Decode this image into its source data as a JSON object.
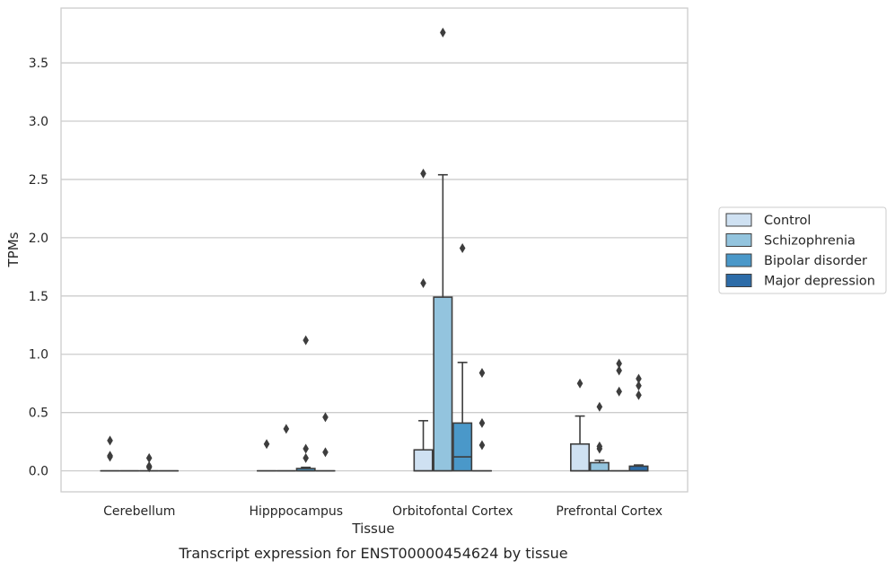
{
  "chart_data": {
    "type": "box",
    "title": "",
    "caption": "Transcript expression for ENST00000454624 by tissue",
    "xlabel": "Tissue",
    "ylabel": "TPMs",
    "ylim": [
      -0.18,
      3.97
    ],
    "yticks": [
      0.0,
      0.5,
      1.0,
      1.5,
      2.0,
      2.5,
      3.0,
      3.5
    ],
    "ytick_labels": [
      "0.0",
      "0.5",
      "1.0",
      "1.5",
      "2.0",
      "2.5",
      "3.0",
      "3.5"
    ],
    "grid": "horizontal",
    "legend_position": "right",
    "categories": [
      "Cerebellum",
      "Hipppocampus",
      "Orbitofontal Cortex",
      "Prefrontal Cortex"
    ],
    "series": [
      {
        "name": "Control",
        "color": "#cfe1f2",
        "boxes": [
          {
            "q1": 0,
            "median": 0,
            "q3": 0,
            "whislo": 0,
            "whishi": 0,
            "fliers": [
              0.26,
              0.13,
              0.12
            ]
          },
          {
            "q1": 0,
            "median": 0,
            "q3": 0,
            "whislo": 0,
            "whishi": 0,
            "fliers": [
              0.23
            ]
          },
          {
            "q1": 0,
            "median": 0,
            "q3": 0.18,
            "whislo": 0,
            "whishi": 0.43,
            "fliers": [
              1.61,
              2.55
            ]
          },
          {
            "q1": 0,
            "median": 0,
            "q3": 0.23,
            "whislo": 0,
            "whishi": 0.47,
            "fliers": [
              0.75
            ]
          }
        ]
      },
      {
        "name": "Schizophrenia",
        "color": "#93c4de",
        "boxes": [
          {
            "q1": 0,
            "median": 0,
            "q3": 0,
            "whislo": 0,
            "whishi": 0,
            "fliers": []
          },
          {
            "q1": 0,
            "median": 0,
            "q3": 0,
            "whislo": 0,
            "whishi": 0,
            "fliers": [
              0.36
            ]
          },
          {
            "q1": 0,
            "median": 0,
            "q3": 1.49,
            "whislo": 0,
            "whishi": 2.54,
            "fliers": [
              3.76
            ]
          },
          {
            "q1": 0,
            "median": 0,
            "q3": 0.07,
            "whislo": 0,
            "whishi": 0.09,
            "fliers": [
              0.55,
              0.21,
              0.19
            ]
          }
        ]
      },
      {
        "name": "Bipolar disorder",
        "color": "#4a98c9",
        "boxes": [
          {
            "q1": 0,
            "median": 0,
            "q3": 0,
            "whislo": 0,
            "whishi": 0,
            "fliers": [
              0.11,
              0.04,
              0.03
            ]
          },
          {
            "q1": 0,
            "median": 0,
            "q3": 0.02,
            "whislo": 0,
            "whishi": 0.03,
            "fliers": [
              1.12,
              0.19,
              0.11
            ]
          },
          {
            "q1": 0,
            "median": 0.12,
            "q3": 0.41,
            "whislo": 0,
            "whishi": 0.93,
            "fliers": [
              1.91
            ]
          },
          {
            "q1": 0,
            "median": 0,
            "q3": 0,
            "whislo": 0,
            "whishi": 0,
            "fliers": [
              0.92,
              0.86,
              0.68
            ]
          }
        ]
      },
      {
        "name": "Major depression",
        "color": "#2d6ca8",
        "boxes": [
          {
            "q1": 0,
            "median": 0,
            "q3": 0,
            "whislo": 0,
            "whishi": 0,
            "fliers": []
          },
          {
            "q1": 0,
            "median": 0,
            "q3": 0,
            "whislo": 0,
            "whishi": 0,
            "fliers": [
              0.46,
              0.16
            ]
          },
          {
            "q1": 0,
            "median": 0,
            "q3": 0,
            "whislo": 0,
            "whishi": 0,
            "fliers": [
              0.84,
              0.41,
              0.22
            ]
          },
          {
            "q1": 0,
            "median": 0,
            "q3": 0.04,
            "whislo": 0,
            "whishi": 0.05,
            "fliers": [
              0.79,
              0.73,
              0.65
            ]
          }
        ]
      }
    ]
  }
}
